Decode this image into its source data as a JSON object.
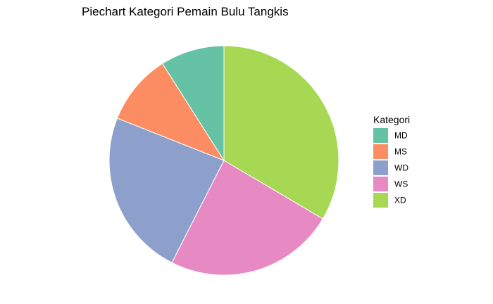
{
  "chart_data": {
    "type": "pie",
    "title": "Piechart Kategori Pemain Bulu Tangkis",
    "legend": {
      "title": "Kategori",
      "position": "right"
    },
    "categories": [
      "MD",
      "MS",
      "WD",
      "WS",
      "XD"
    ],
    "values": [
      9,
      10,
      23.5,
      24,
      33.5
    ],
    "colors": [
      "#66C2A5",
      "#FC8D62",
      "#8DA0CB",
      "#E78AC3",
      "#A6D854"
    ],
    "order": [
      "XD",
      "WS",
      "WD",
      "MS",
      "MD"
    ],
    "direction": "clockwise",
    "start": "top",
    "slice_border": "#ffffff"
  }
}
